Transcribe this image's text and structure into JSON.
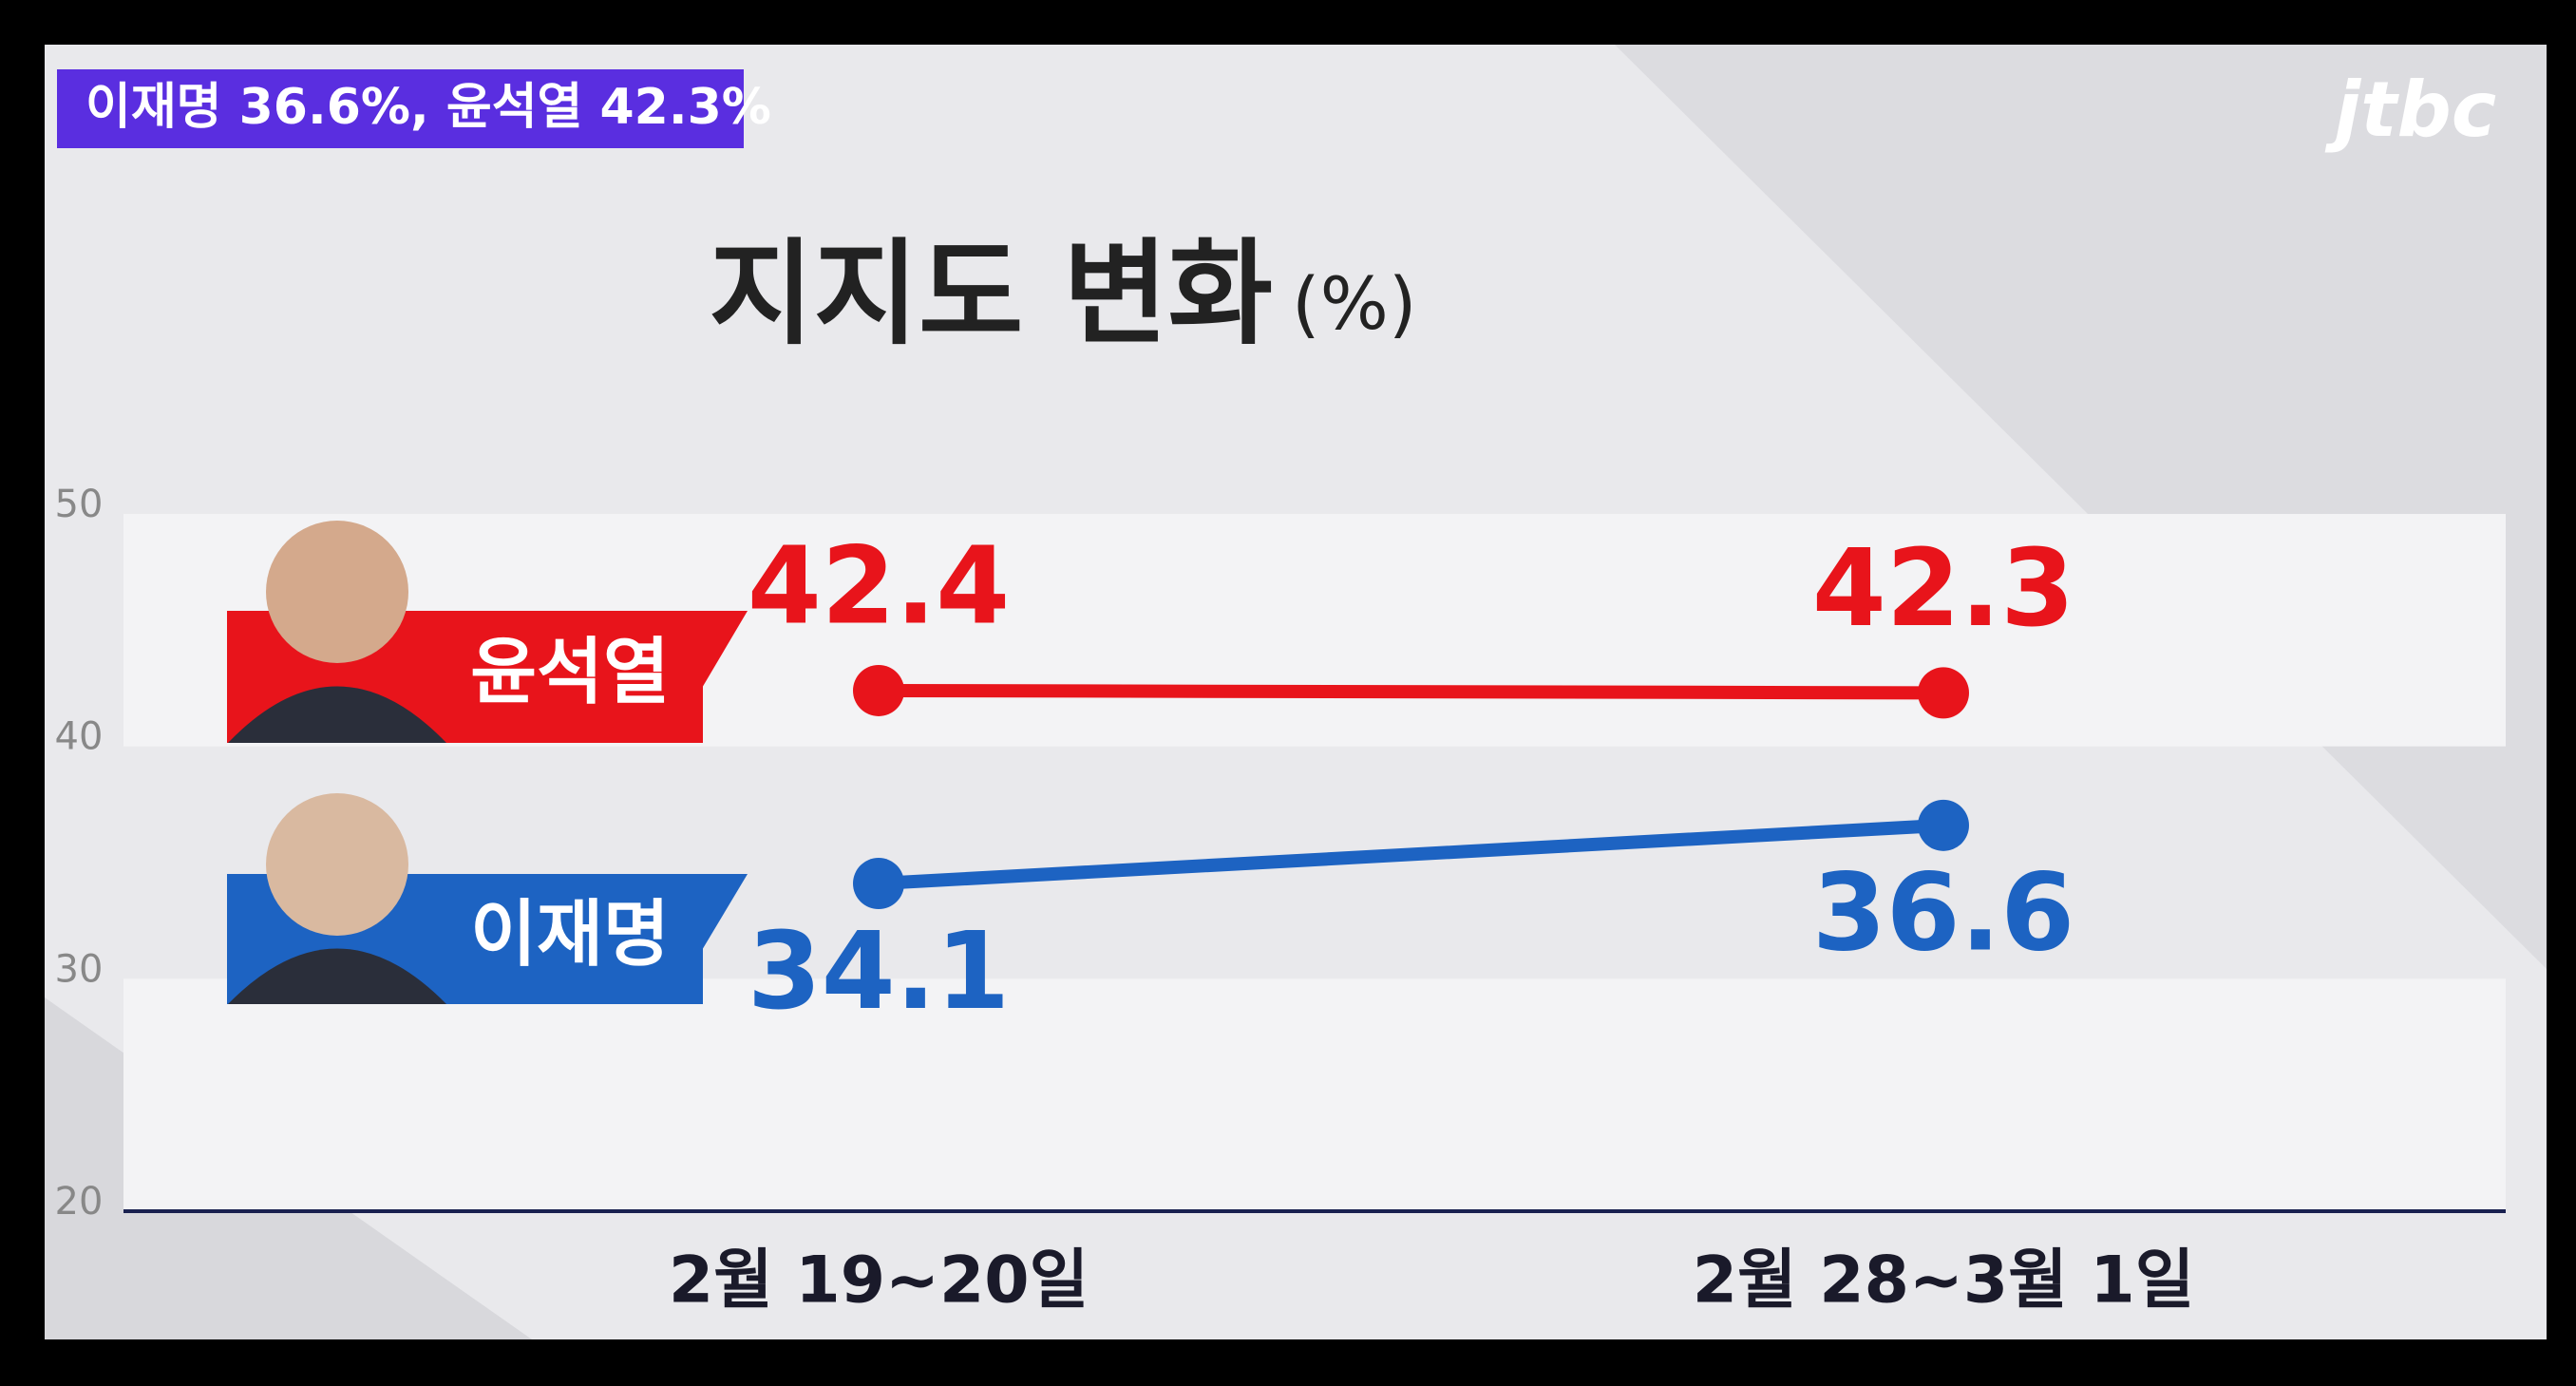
{
  "banner": "이재명 36.6%, 윤석열 42.3%",
  "logo": "jtbc",
  "chart_data": {
    "type": "line",
    "title": "지지도 변화",
    "unit": "(%)",
    "categories": [
      "2월 19~20일",
      "2월 28~3월 1일"
    ],
    "series": [
      {
        "name": "윤석열",
        "color": "#e8141b",
        "values": [
          42.4,
          42.3
        ]
      },
      {
        "name": "이재명",
        "color": "#1d63c2",
        "values": [
          34.1,
          36.6
        ]
      }
    ],
    "ylim": [
      20,
      50
    ],
    "yticks": [
      20,
      30,
      40,
      50
    ],
    "grid": true
  }
}
